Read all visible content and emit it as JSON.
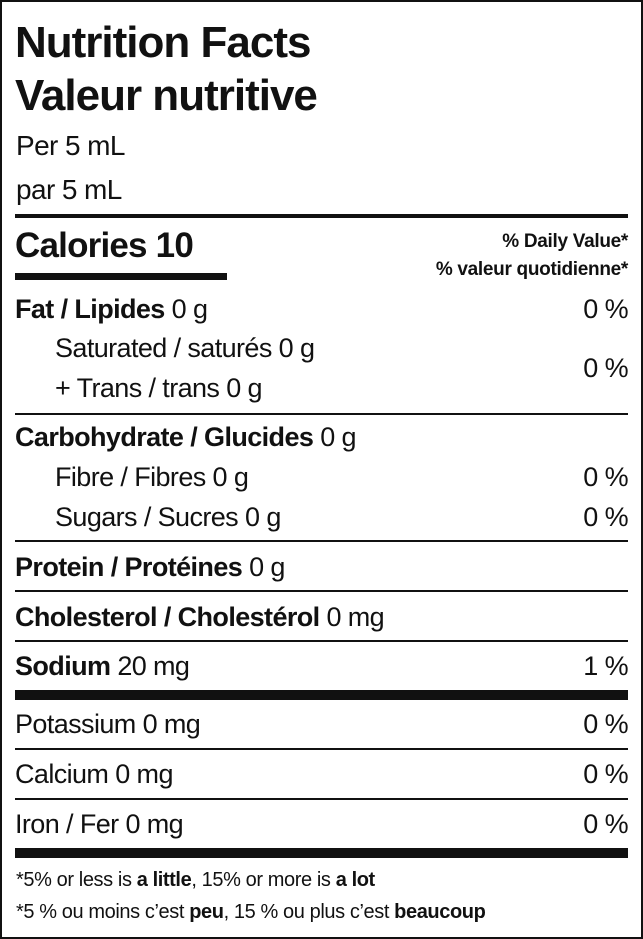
{
  "title_en": "Nutrition Facts",
  "title_fr": "Valeur nutritive",
  "serving_en": "Per 5 mL",
  "serving_fr": "par 5 mL",
  "calories": {
    "label": "Calories",
    "value": "10"
  },
  "daily_value_en": "% Daily Value*",
  "daily_value_fr": "% valeur quotidienne*",
  "rows": {
    "fat": {
      "name": "Fat / Lipides",
      "amount": "0 g",
      "dv": "0 %"
    },
    "saturated": {
      "name": "Saturated / saturés",
      "amount": "0 g"
    },
    "trans": {
      "name": "+ Trans / trans",
      "amount": "0 g"
    },
    "sat_trans_dv": "0 %",
    "carb": {
      "name": "Carbohydrate / Glucides",
      "amount": "0 g"
    },
    "fibre": {
      "name": "Fibre / Fibres",
      "amount": "0 g",
      "dv": "0 %"
    },
    "sugars": {
      "name": "Sugars / Sucres",
      "amount": "0 g",
      "dv": "0 %"
    },
    "protein": {
      "name": "Protein / Protéines",
      "amount": "0 g"
    },
    "cholesterol": {
      "name": "Cholesterol / Cholestérol",
      "amount": "0 mg"
    },
    "sodium": {
      "name": "Sodium",
      "amount": "20 mg",
      "dv": "1 %"
    },
    "potassium": {
      "name": "Potassium",
      "amount": "0 mg",
      "dv": "0 %"
    },
    "calcium": {
      "name": "Calcium",
      "amount": "0 mg",
      "dv": "0 %"
    },
    "iron": {
      "name": "Iron / Fer",
      "amount": "0 mg",
      "dv": "0 %"
    }
  },
  "footnote_en": {
    "a": "*5% or less is ",
    "b": "a little",
    "c": ", 15% or more is ",
    "d": "a lot"
  },
  "footnote_fr": {
    "a": "*5 % ou moins c’est ",
    "b": "peu",
    "c": ", 15 % ou plus c’est ",
    "d": "beaucoup"
  }
}
